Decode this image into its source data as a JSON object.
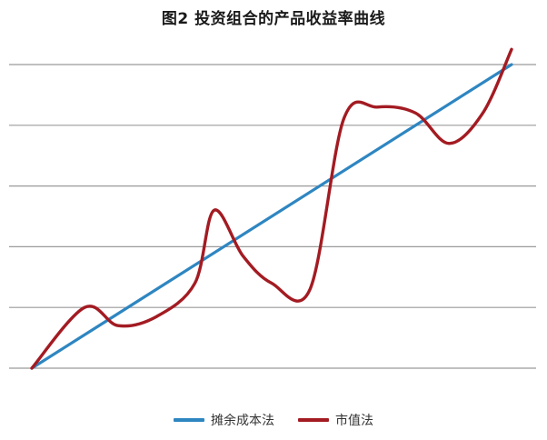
{
  "chart_data": {
    "type": "line",
    "title": "图2  投资组合的产品收益率曲线",
    "xlabel": "",
    "ylabel": "",
    "x_ticks_shown": false,
    "y_ticks_shown": false,
    "grid": "horizontal",
    "gridline_count": 6,
    "legend_position": "bottom-center",
    "xlim": [
      0,
      100
    ],
    "ylim": [
      0,
      100
    ],
    "series": [
      {
        "name": "摊余成本法",
        "color": "#2e86c1",
        "x": [
          0,
          100
        ],
        "y": [
          0,
          100
        ]
      },
      {
        "name": "市值法",
        "color": "#a31b22",
        "x": [
          0,
          11,
          18,
          26,
          34,
          38,
          44,
          50,
          58,
          65,
          72,
          80,
          87,
          94,
          100
        ],
        "y": [
          0,
          20,
          14,
          17,
          28,
          52,
          37,
          28,
          26,
          82,
          86,
          84,
          74,
          84,
          105
        ]
      }
    ]
  }
}
